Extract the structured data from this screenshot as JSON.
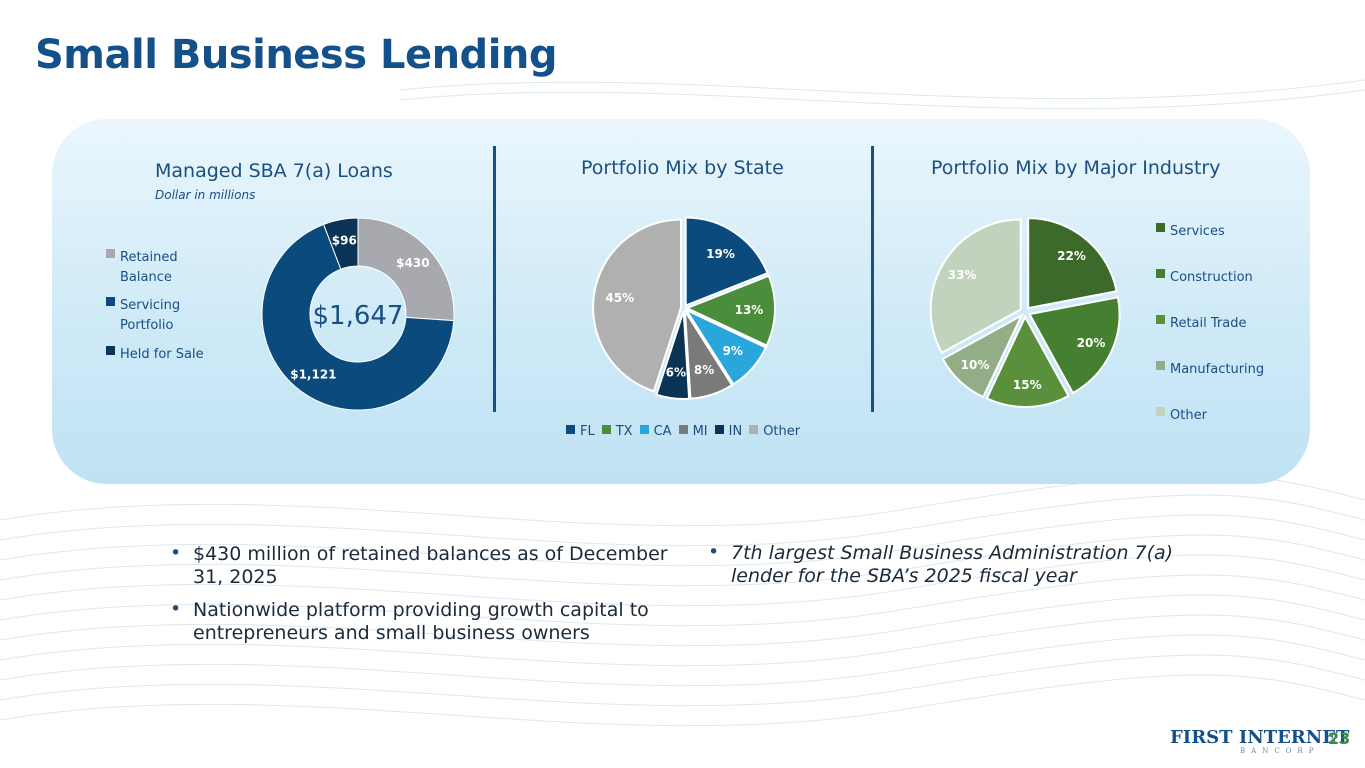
{
  "page": {
    "title": "Small Business Lending",
    "page_number": "23",
    "logo": {
      "main": "FIRST INTERNET",
      "sub": "BANCORP"
    }
  },
  "colors": {
    "title": "#14508a",
    "navy": "#0b4a7c",
    "dark_navy": "#0a3355",
    "grey": "#a7a9ae",
    "green_dark": "#3b6a2a",
    "green_mid": "#44802f",
    "green": "#5a8f3c",
    "sage": "#93ad87",
    "light_sage": "#c2d3bd",
    "tx_green": "#4a8d3a",
    "cyan": "#29a7dd",
    "mi_grey": "#7a7a7a",
    "other_grey": "#b0b0b0"
  },
  "panel1": {
    "title": "Managed SBA 7(a) Loans",
    "subtitle": "Dollar in millions"
  },
  "panel2": {
    "title": "Portfolio Mix by State"
  },
  "panel3": {
    "title": "Portfolio Mix by Major Industry"
  },
  "chart_data": [
    {
      "type": "pie",
      "subtype": "donut",
      "center_label": "$1,647",
      "categories": [
        "Retained Balance",
        "Servicing Portfolio",
        "Held for Sale"
      ],
      "values": [
        430,
        1121,
        96
      ],
      "data_labels": [
        "$430",
        "$1,121",
        "$96"
      ],
      "colors": [
        "#a7a9ae",
        "#0b4a7c",
        "#0a3355"
      ],
      "legend_position": "left"
    },
    {
      "type": "pie",
      "categories": [
        "FL",
        "TX",
        "CA",
        "MI",
        "IN",
        "Other"
      ],
      "values": [
        19,
        13,
        9,
        8,
        6,
        45
      ],
      "data_labels": [
        "19%",
        "13%",
        "9%",
        "8%",
        "6%",
        "45%"
      ],
      "colors": [
        "#0b4a7c",
        "#4a8d3a",
        "#29a7dd",
        "#7a7a7a",
        "#0a3355",
        "#b0b0b0"
      ],
      "legend_position": "bottom"
    },
    {
      "type": "pie",
      "categories": [
        "Services",
        "Construction",
        "Retail Trade",
        "Manufacturing",
        "Other"
      ],
      "values": [
        22,
        20,
        15,
        10,
        33
      ],
      "data_labels": [
        "22%",
        "20%",
        "15%",
        "10%",
        "33%"
      ],
      "colors": [
        "#3b6a2a",
        "#44802f",
        "#5a8f3c",
        "#93ad87",
        "#c2d3bd"
      ],
      "legend_position": "right"
    }
  ],
  "bullets_left": [
    "$430 million of retained balances as of December 31, 2025",
    "Nationwide platform providing growth capital to entrepreneurs and small business owners"
  ],
  "bullets_right": [
    "7th largest Small Business Administration 7(a) lender for the SBA’s 2025 fiscal year"
  ]
}
